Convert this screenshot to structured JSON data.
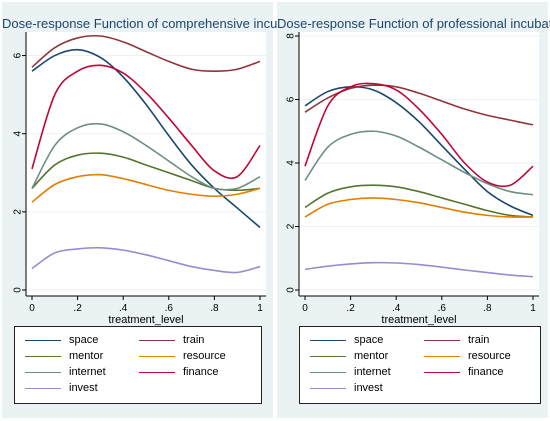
{
  "chart_data": [
    {
      "type": "line",
      "title": "Dose-response Function of comprehensive incubators",
      "xlabel": "treatment_level",
      "ylabel": "",
      "xlim": [
        0,
        1
      ],
      "ylim": [
        0,
        6.5
      ],
      "xticks": [
        0,
        0.2,
        0.4,
        0.6,
        0.8,
        1
      ],
      "xtick_labels": [
        "0",
        ".2",
        ".4",
        ".6",
        ".8",
        "1"
      ],
      "yticks": [
        0,
        2,
        4,
        6
      ],
      "ytick_labels": [
        "0",
        "2",
        "4",
        "6"
      ],
      "grid": true,
      "legend_position": "bottom",
      "x": [
        0,
        0.1,
        0.2,
        0.3,
        0.4,
        0.5,
        0.6,
        0.7,
        0.8,
        0.9,
        1
      ],
      "series": [
        {
          "name": "space",
          "color": "#1a476f",
          "values": [
            5.6,
            6.0,
            6.15,
            5.95,
            5.45,
            4.75,
            3.95,
            3.2,
            2.6,
            2.1,
            1.6
          ]
        },
        {
          "name": "train",
          "color": "#90353b",
          "values": [
            5.7,
            6.2,
            6.45,
            6.5,
            6.35,
            6.1,
            5.85,
            5.65,
            5.6,
            5.65,
            5.85
          ]
        },
        {
          "name": "mentor",
          "color": "#55752f",
          "values": [
            2.6,
            3.2,
            3.45,
            3.5,
            3.4,
            3.2,
            3.0,
            2.8,
            2.6,
            2.55,
            2.6
          ]
        },
        {
          "name": "resource",
          "color": "#e37e00",
          "values": [
            2.25,
            2.7,
            2.9,
            2.95,
            2.85,
            2.7,
            2.55,
            2.45,
            2.4,
            2.45,
            2.6
          ]
        },
        {
          "name": "internet",
          "color": "#6e8e84",
          "values": [
            2.6,
            3.7,
            4.15,
            4.25,
            4.05,
            3.7,
            3.3,
            2.9,
            2.6,
            2.6,
            2.9
          ]
        },
        {
          "name": "finance",
          "color": "#c10534",
          "values": [
            3.1,
            5.0,
            5.6,
            5.75,
            5.55,
            5.05,
            4.4,
            3.7,
            3.05,
            2.9,
            3.7
          ]
        },
        {
          "name": "invest",
          "color": "#938dd2",
          "values": [
            0.55,
            0.95,
            1.05,
            1.08,
            1.02,
            0.9,
            0.75,
            0.6,
            0.5,
            0.45,
            0.6
          ]
        }
      ]
    },
    {
      "type": "line",
      "title": "Dose-response Function of professional incubators",
      "xlabel": "treatment_level",
      "ylabel": "",
      "xlim": [
        0,
        1
      ],
      "ylim": [
        0,
        8
      ],
      "xticks": [
        0,
        0.2,
        0.4,
        0.6,
        0.8,
        1
      ],
      "xtick_labels": [
        "0",
        ".2",
        ".4",
        ".6",
        ".8",
        "1"
      ],
      "yticks": [
        0,
        2,
        4,
        6,
        8
      ],
      "ytick_labels": [
        "0",
        "2",
        "4",
        "6",
        "8"
      ],
      "grid": true,
      "legend_position": "bottom",
      "x": [
        0,
        0.1,
        0.2,
        0.3,
        0.4,
        0.5,
        0.6,
        0.7,
        0.8,
        0.9,
        1
      ],
      "series": [
        {
          "name": "space",
          "color": "#1a476f",
          "values": [
            5.8,
            6.25,
            6.4,
            6.3,
            5.9,
            5.3,
            4.55,
            3.8,
            3.1,
            2.65,
            2.35
          ]
        },
        {
          "name": "train",
          "color": "#90353b",
          "values": [
            5.6,
            6.05,
            6.35,
            6.45,
            6.4,
            6.2,
            5.95,
            5.7,
            5.5,
            5.35,
            5.2
          ]
        },
        {
          "name": "mentor",
          "color": "#55752f",
          "values": [
            2.6,
            3.05,
            3.25,
            3.3,
            3.25,
            3.1,
            2.9,
            2.7,
            2.5,
            2.35,
            2.3
          ]
        },
        {
          "name": "resource",
          "color": "#e37e00",
          "values": [
            2.3,
            2.7,
            2.85,
            2.9,
            2.85,
            2.75,
            2.6,
            2.45,
            2.35,
            2.3,
            2.3
          ]
        },
        {
          "name": "internet",
          "color": "#6e8e84",
          "values": [
            3.45,
            4.5,
            4.9,
            5.0,
            4.85,
            4.5,
            4.1,
            3.7,
            3.35,
            3.1,
            3.0
          ]
        },
        {
          "name": "finance",
          "color": "#c10534",
          "values": [
            3.9,
            5.8,
            6.4,
            6.5,
            6.3,
            5.7,
            4.9,
            4.0,
            3.4,
            3.3,
            3.9
          ]
        },
        {
          "name": "invest",
          "color": "#938dd2",
          "values": [
            0.65,
            0.75,
            0.82,
            0.86,
            0.85,
            0.8,
            0.72,
            0.63,
            0.55,
            0.47,
            0.42
          ]
        }
      ]
    }
  ]
}
